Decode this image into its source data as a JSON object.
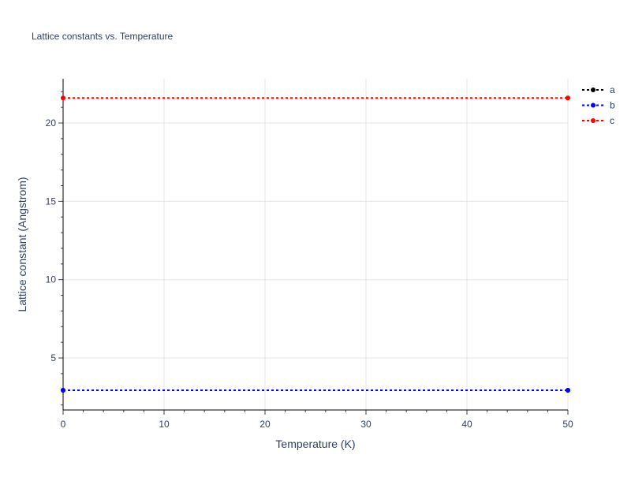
{
  "chart_data": {
    "type": "line",
    "title": "Lattice constants vs. Temperature",
    "xlabel": "Temperature (K)",
    "ylabel": "Lattice constant (Angstrom)",
    "xlim": [
      0,
      50
    ],
    "ylim": [
      1.68,
      22.82
    ],
    "xticks": [
      0,
      10,
      20,
      30,
      40,
      50
    ],
    "yticks": [
      5,
      10,
      15,
      20
    ],
    "grid": true,
    "legend_position": "top-right",
    "series": [
      {
        "name": "a",
        "color": "#000000",
        "x": [
          0,
          50
        ],
        "y": [
          2.94,
          2.94
        ]
      },
      {
        "name": "b",
        "color": "#0000ff",
        "x": [
          0,
          50
        ],
        "y": [
          2.94,
          2.94
        ]
      },
      {
        "name": "c",
        "color": "#ff0000",
        "x": [
          0,
          50
        ],
        "y": [
          21.6,
          21.6
        ]
      }
    ]
  }
}
